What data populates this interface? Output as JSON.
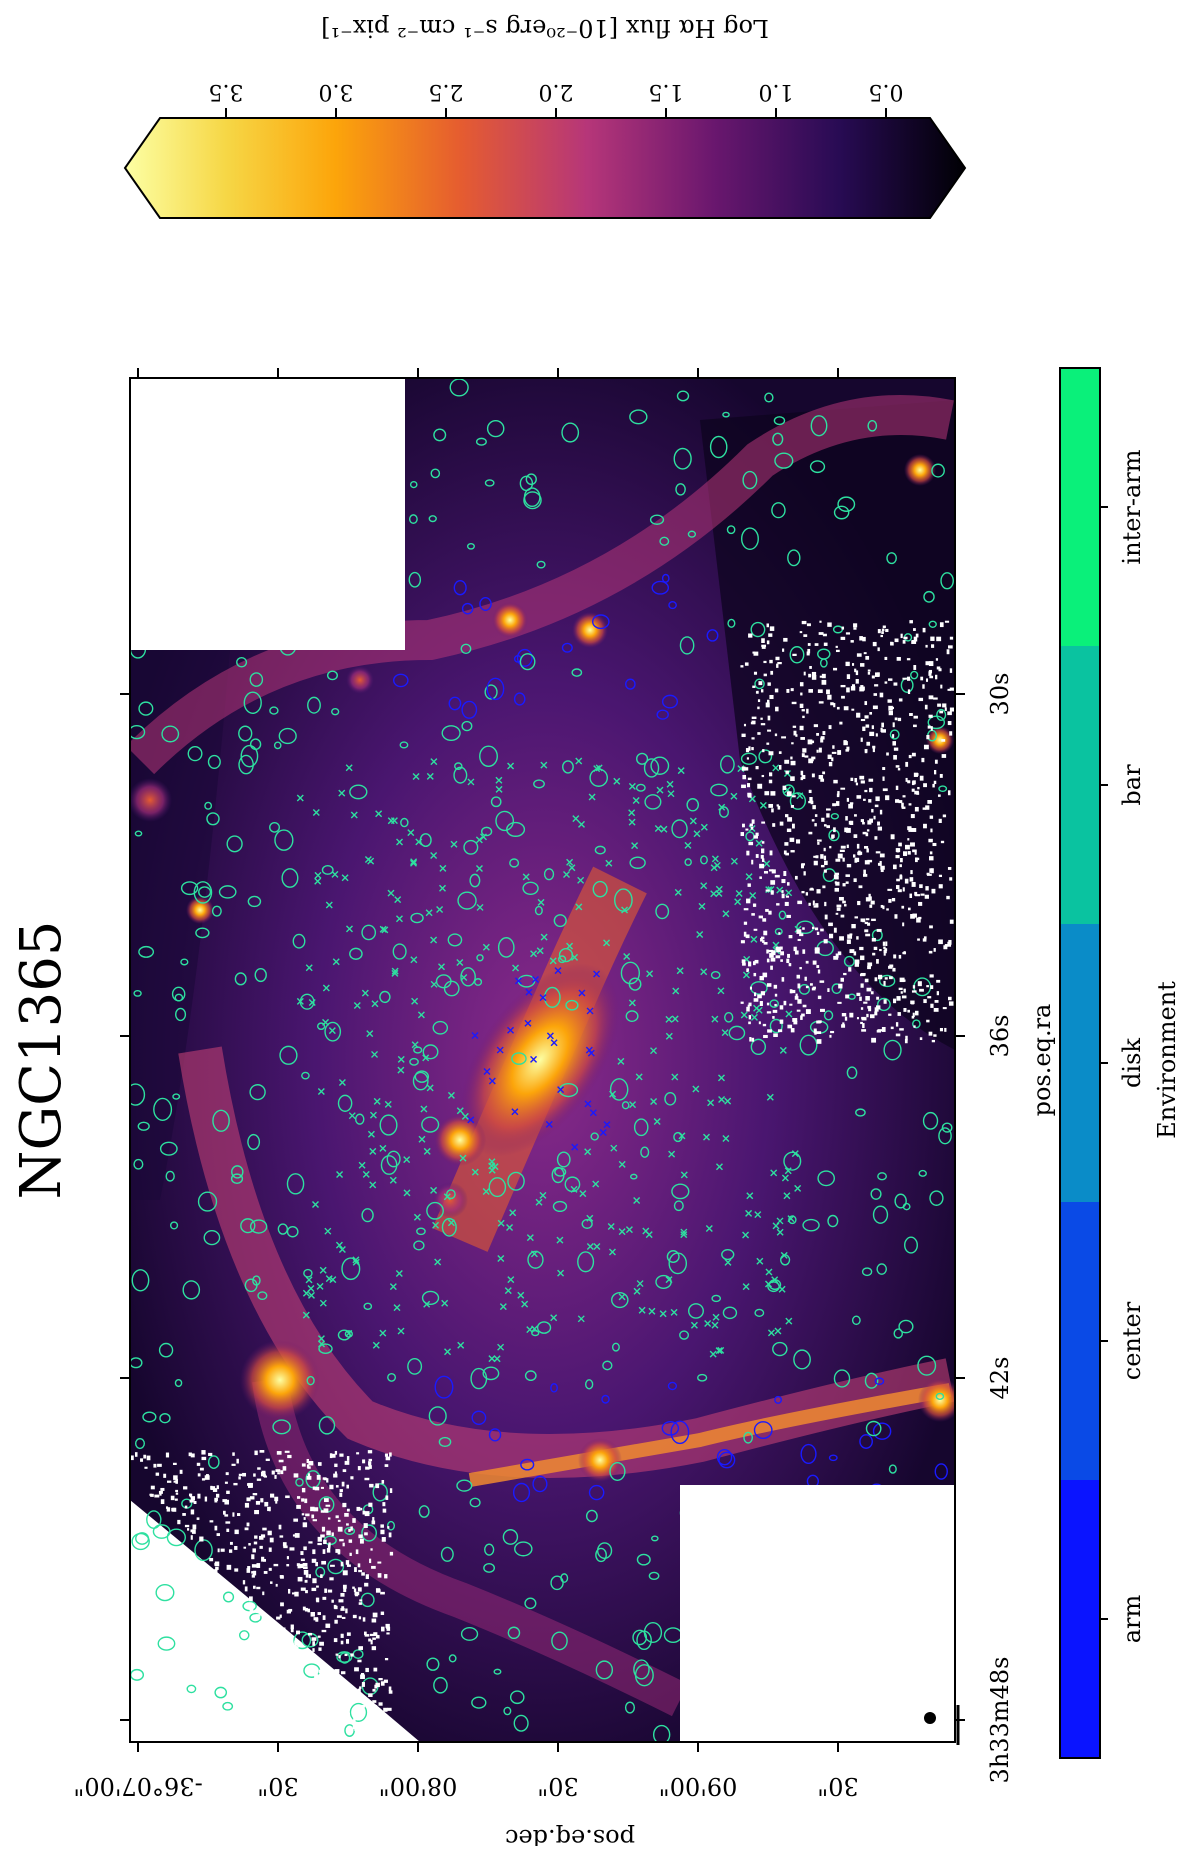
{
  "title": "NGC1365",
  "colorbar_top": {
    "label": "Log Hα flux [10⁻²⁰erg s⁻¹ cm⁻² pix⁻¹]",
    "ticks": [
      "3.5",
      "3.0",
      "2.5",
      "2.0",
      "1.5",
      "1.0",
      "0.5"
    ],
    "range": [
      0.3,
      3.8
    ]
  },
  "axes": {
    "ra_label": "pos.eq.ra",
    "dec_label": "pos.eq.dec",
    "ra_ticks": [
      "3h33m48s",
      "42s",
      "36s",
      "30s"
    ],
    "dec_ticks": [
      "-36°07'00\"",
      "30\"",
      "08'00\"",
      "30\"",
      "09'00\"",
      "30\""
    ]
  },
  "colorbar_env": {
    "label": "Environment",
    "categories": [
      {
        "name": "arm",
        "color": "#0a14ff"
      },
      {
        "name": "center",
        "color": "#0a4ae6"
      },
      {
        "name": "disk",
        "color": "#0a8cc8"
      },
      {
        "name": "bar",
        "color": "#0ac3a0"
      },
      {
        "name": "inter-arm",
        "color": "#0af07a"
      }
    ]
  },
  "colors": {
    "contour_arm": "#1a1aff",
    "contour_other": "#2ee0a0",
    "cmap_low": "#000004",
    "cmap_high": "#fcffa4"
  }
}
